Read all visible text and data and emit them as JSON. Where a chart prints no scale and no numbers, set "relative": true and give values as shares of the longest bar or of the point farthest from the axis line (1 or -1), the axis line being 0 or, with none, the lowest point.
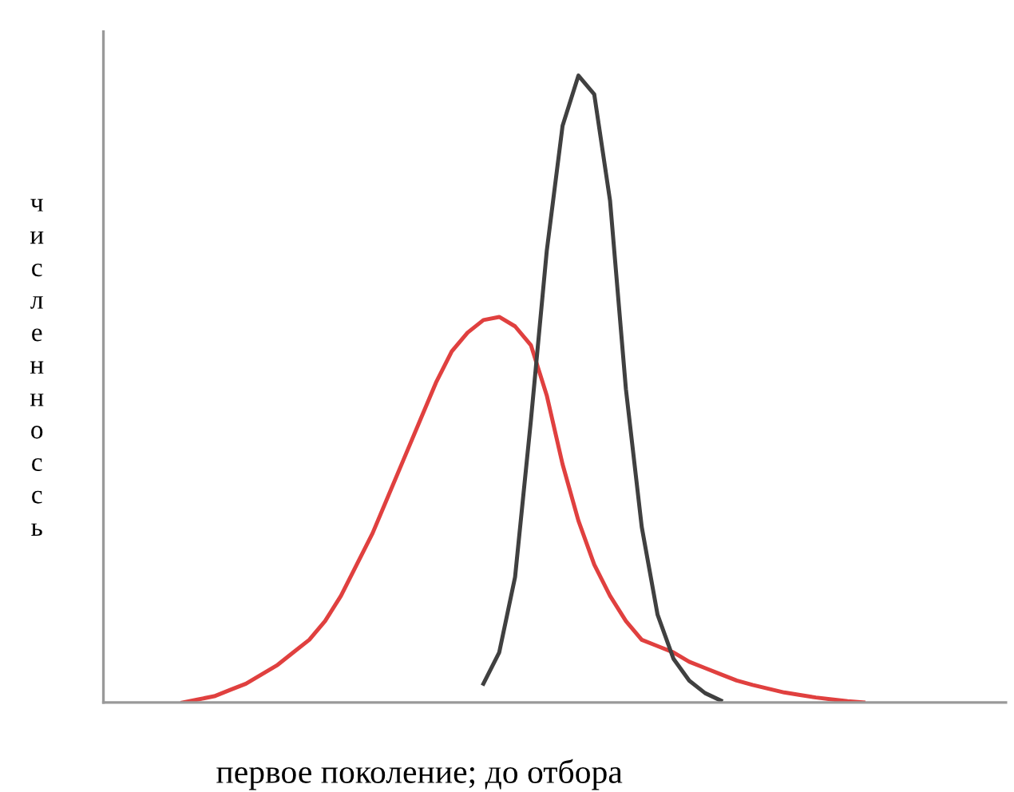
{
  "chart_data": {
    "type": "line",
    "relative": true,
    "xlabel": "первое поколение; до отбора",
    "ylabel": "численноссь",
    "grid": false,
    "legend": false,
    "marker": "none",
    "line_style": "solid",
    "categories": [
      null,
      null,
      null,
      null,
      null,
      null,
      null,
      null,
      null,
      null,
      null,
      null,
      null,
      null,
      null,
      null,
      null,
      null,
      null,
      null,
      null,
      null,
      null,
      null,
      null,
      null,
      null,
      null,
      null,
      null,
      null,
      null,
      null,
      null,
      null,
      null,
      null,
      null,
      null,
      null,
      null,
      null,
      null,
      null
    ],
    "series": [
      {
        "color": "#e0403f",
        "values": [
          0,
          0.005,
          0.01,
          0.02,
          0.03,
          0.045,
          0.06,
          0.08,
          0.1,
          0.13,
          0.17,
          0.22,
          0.27,
          0.33,
          0.39,
          0.45,
          0.51,
          0.56,
          0.59,
          0.61,
          0.615,
          0.6,
          0.57,
          0.49,
          0.38,
          0.29,
          0.22,
          0.17,
          0.13,
          0.1,
          0.09,
          0.08,
          0.065,
          0.055,
          0.045,
          0.035,
          0.028,
          0.022,
          0.016,
          0.012,
          0.008,
          0.005,
          0.002,
          0
        ]
      },
      {
        "color": "#404040",
        "values": [
          null,
          null,
          null,
          null,
          null,
          null,
          null,
          null,
          null,
          null,
          null,
          null,
          null,
          null,
          null,
          null,
          null,
          null,
          null,
          0.03,
          0.08,
          0.2,
          0.45,
          0.72,
          0.92,
          1,
          0.97,
          0.8,
          0.5,
          0.28,
          0.14,
          0.07,
          0.035,
          0.015,
          0.003,
          null,
          null,
          null,
          null,
          null,
          null,
          null,
          null,
          null
        ]
      }
    ]
  }
}
